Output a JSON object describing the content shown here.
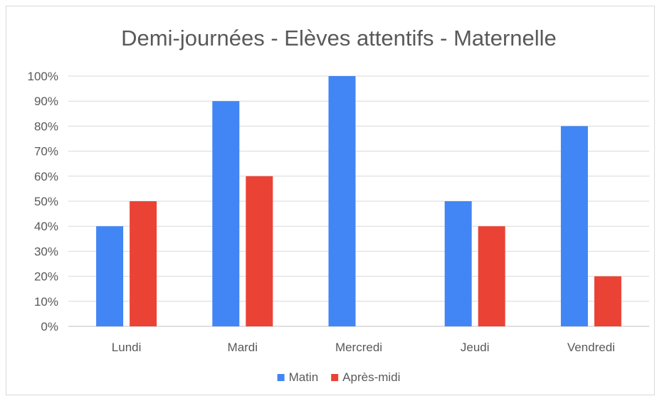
{
  "chart_data": {
    "type": "bar",
    "title": "Demi-journées - Elèves attentifs - Maternelle",
    "xlabel": "",
    "ylabel": "",
    "categories": [
      "Lundi",
      "Mardi",
      "Mercredi",
      "Jeudi",
      "Vendredi"
    ],
    "series": [
      {
        "name": "Matin",
        "color": "#4285f4",
        "values": [
          40,
          90,
          100,
          50,
          80
        ]
      },
      {
        "name": "Après-midi",
        "color": "#ea4335",
        "values": [
          50,
          60,
          0,
          40,
          20
        ]
      }
    ],
    "ylim": [
      0,
      100
    ],
    "yticks": [
      "0%",
      "10%",
      "20%",
      "30%",
      "40%",
      "50%",
      "60%",
      "70%",
      "80%",
      "90%",
      "100%"
    ],
    "grid": true,
    "legend_position": "bottom"
  }
}
